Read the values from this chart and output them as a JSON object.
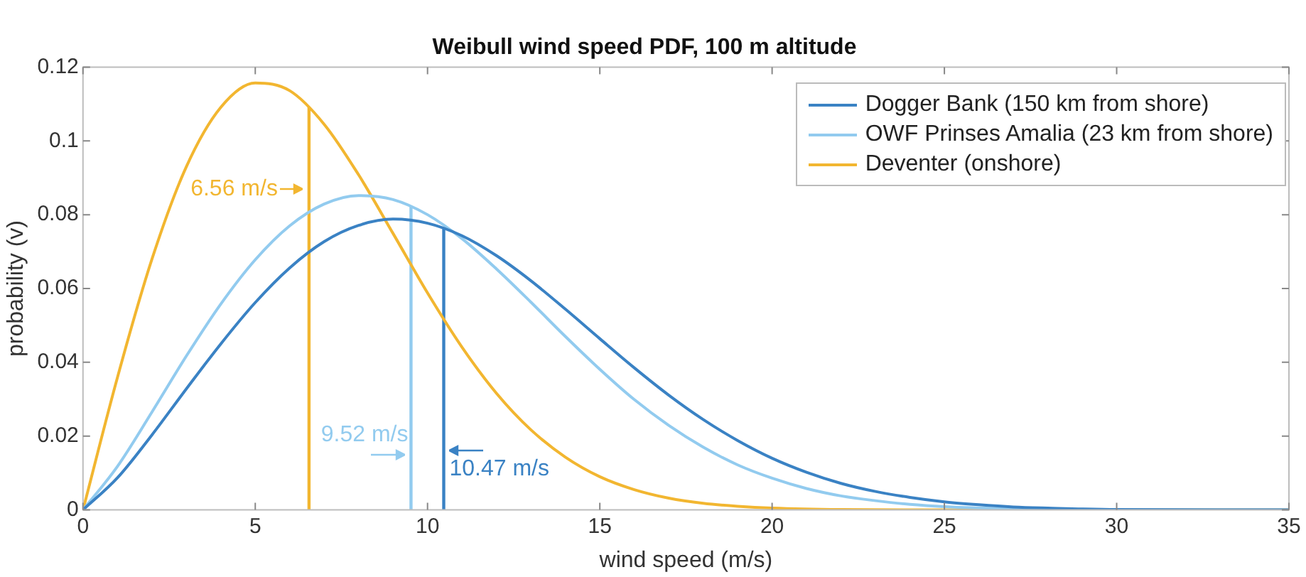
{
  "chart_data": {
    "type": "line",
    "title": "Weibull wind speed PDF, 100 m altitude",
    "xlabel": "wind speed (m/s)",
    "ylabel": "probability (v)",
    "xlim": [
      0,
      35
    ],
    "xticks": [
      0,
      5,
      10,
      15,
      20,
      25,
      30,
      35
    ],
    "ylim": [
      0,
      0.12
    ],
    "yticks": [
      0,
      0.02,
      0.04,
      0.06,
      0.08,
      0.1,
      0.12
    ],
    "grid": false,
    "legend": "top right",
    "marker": "none",
    "line_style": "solid",
    "series": [
      {
        "name": "Dogger Bank (150 km from shore)",
        "color": "#3a82c4",
        "x": [
          0,
          1,
          2,
          3,
          4,
          5,
          6,
          7,
          8,
          9,
          10,
          11,
          12,
          13,
          14,
          15,
          16,
          17,
          18,
          19,
          20,
          21,
          22,
          23,
          24,
          25,
          26,
          27,
          28,
          30,
          35
        ],
        "values": [
          0,
          0.0087,
          0.0203,
          0.0328,
          0.045,
          0.0562,
          0.0656,
          0.0727,
          0.0771,
          0.0788,
          0.0777,
          0.0743,
          0.0689,
          0.0621,
          0.0544,
          0.0464,
          0.0385,
          0.0311,
          0.0245,
          0.0188,
          0.014,
          0.0102,
          0.0072,
          0.005,
          0.0034,
          0.0022,
          0.0014,
          0.0008,
          0.0005,
          0.0001,
          0
        ]
      },
      {
        "name": "OWF Prinses Amalia (23 km from shore)",
        "color": "#92cbef",
        "x": [
          0,
          1,
          2,
          3,
          4,
          5,
          6,
          7,
          8,
          9,
          10,
          11,
          12,
          13,
          14,
          15,
          16,
          17,
          18,
          19,
          20,
          21,
          22,
          23,
          24,
          25,
          27,
          30,
          35
        ],
        "values": [
          0,
          0.0118,
          0.0265,
          0.0417,
          0.0558,
          0.0678,
          0.077,
          0.0829,
          0.0852,
          0.0841,
          0.08,
          0.0735,
          0.0653,
          0.0563,
          0.047,
          0.0381,
          0.0299,
          0.0229,
          0.017,
          0.0122,
          0.0086,
          0.0058,
          0.0038,
          0.0025,
          0.0015,
          0.0009,
          0.0003,
          0,
          0
        ]
      },
      {
        "name": "Deventer (onshore)",
        "color": "#f2b630",
        "x": [
          0,
          1,
          2,
          3,
          4,
          5,
          6,
          7,
          8,
          9,
          10,
          11,
          12,
          13,
          14,
          15,
          16,
          17,
          18,
          19,
          20,
          22,
          25,
          35
        ],
        "values": [
          0,
          0.0359,
          0.0679,
          0.093,
          0.1091,
          0.1157,
          0.1136,
          0.1045,
          0.0908,
          0.0749,
          0.0588,
          0.0441,
          0.0316,
          0.0217,
          0.0143,
          0.009,
          0.0055,
          0.0032,
          0.0018,
          0.001,
          0.0005,
          0.0001,
          0,
          0
        ]
      },
      {
        "color": "#f2b630",
        "x": [
          6.56,
          6.56
        ],
        "values": [
          0,
          0.1092
        ]
      },
      {
        "color": "#92cbef",
        "x": [
          9.52,
          9.52
        ],
        "values": [
          0,
          0.0822
        ]
      },
      {
        "color": "#3a82c4",
        "x": [
          10.47,
          10.47
        ],
        "values": [
          0,
          0.0762
        ]
      }
    ],
    "annotations": [
      {
        "text": "6.56 m/s",
        "x": 6.56,
        "y": 0.087
      },
      {
        "text": "9.52 m/s",
        "x": 9.52,
        "y": 0.018
      },
      {
        "text": "10.47 m/s",
        "x": 10.47,
        "y": 0.016
      }
    ]
  }
}
